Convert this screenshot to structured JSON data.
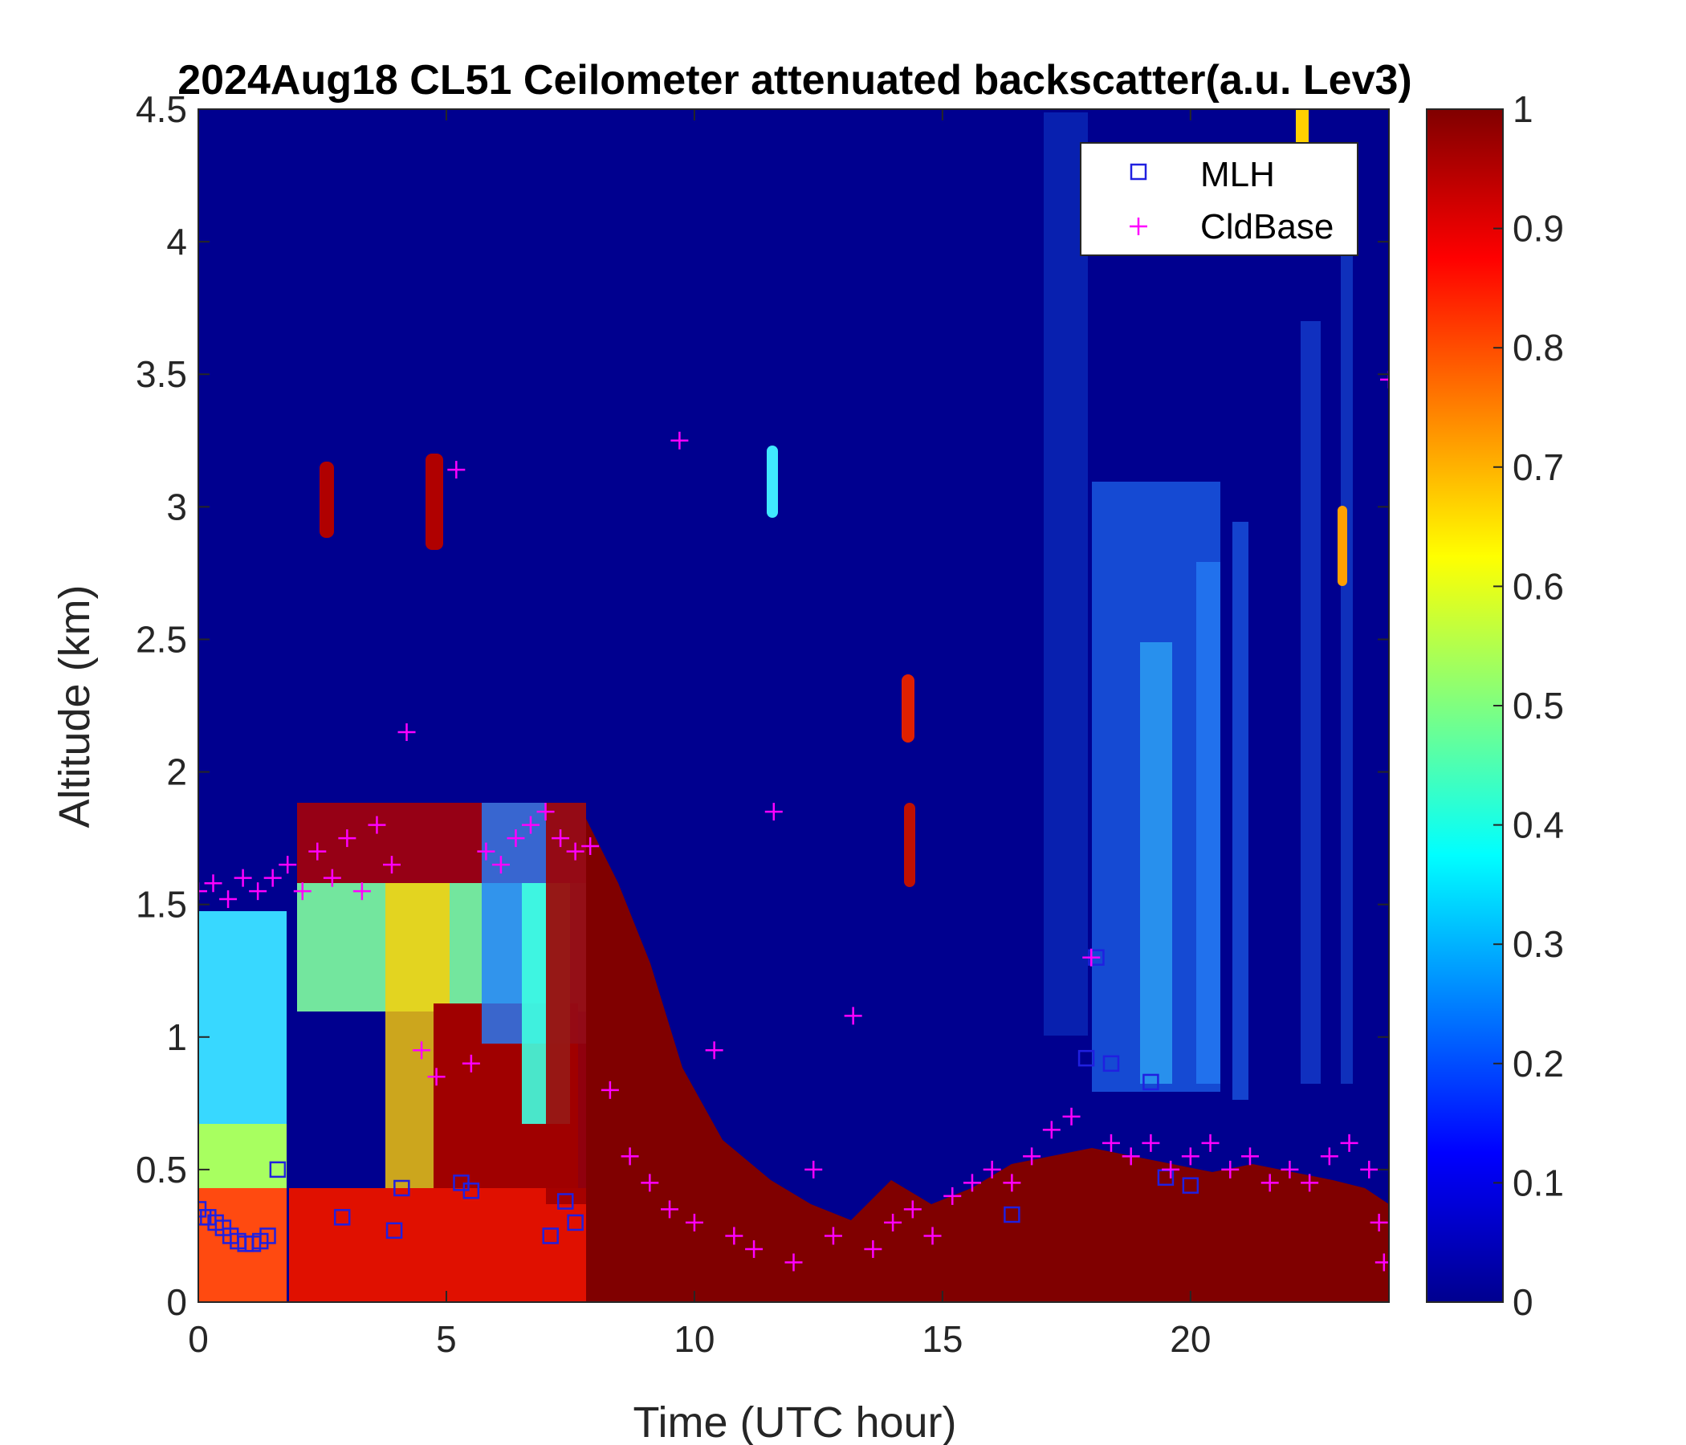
{
  "chart_data": {
    "type": "heatmap",
    "title": "2024Aug18 CL51 Ceilometer attenuated backscatter(a.u. Lev3)",
    "xlabel": "Time (UTC hour)",
    "ylabel": "Altitude (km)",
    "xlim": [
      0,
      24
    ],
    "ylim": [
      0,
      4.5
    ],
    "x_ticks": [
      "0",
      "5",
      "10",
      "15",
      "20"
    ],
    "y_ticks": [
      "0",
      "0.5",
      "1",
      "1.5",
      "2",
      "2.5",
      "3",
      "3.5",
      "4",
      "4.5"
    ],
    "colorbar": {
      "label_ticks": [
        "0",
        "0.1",
        "0.2",
        "0.3",
        "0.4",
        "0.5",
        "0.6",
        "0.7",
        "0.8",
        "0.9",
        "1"
      ],
      "range": [
        0,
        1
      ],
      "colormap": "jet"
    },
    "legend": {
      "location": "top-right",
      "entries": [
        {
          "label": "MLH",
          "marker": "square",
          "color": "#2020e0"
        },
        {
          "label": "CldBase",
          "marker": "plus",
          "color": "#ff00ff"
        }
      ]
    },
    "series": [
      {
        "name": "MLH",
        "x": [
          0.0,
          0.1,
          0.2,
          0.35,
          0.5,
          0.65,
          0.8,
          0.95,
          1.1,
          1.25,
          1.4,
          1.6,
          2.9,
          3.95,
          4.1,
          5.3,
          5.5,
          7.1,
          7.4,
          7.6,
          16.4,
          17.9,
          18.1,
          18.4,
          19.2,
          19.5,
          20.0
        ],
        "y": [
          0.35,
          0.32,
          0.32,
          0.3,
          0.28,
          0.25,
          0.23,
          0.22,
          0.22,
          0.23,
          0.25,
          0.5,
          0.32,
          0.27,
          0.43,
          0.45,
          0.42,
          0.25,
          0.38,
          0.3,
          0.33,
          0.92,
          1.3,
          0.9,
          0.83,
          0.47,
          0.44
        ]
      },
      {
        "name": "CldBase",
        "x": [
          0.0,
          0.3,
          0.6,
          0.9,
          1.2,
          1.5,
          1.8,
          2.1,
          2.4,
          2.7,
          3.0,
          3.3,
          3.6,
          3.9,
          4.2,
          4.5,
          4.8,
          5.2,
          5.5,
          5.8,
          6.1,
          6.4,
          6.7,
          7.0,
          7.3,
          7.6,
          7.9,
          8.3,
          8.7,
          9.1,
          9.5,
          9.7,
          10.0,
          10.4,
          10.8,
          11.2,
          11.6,
          12.0,
          12.4,
          12.8,
          13.2,
          13.6,
          14.0,
          14.4,
          14.8,
          15.2,
          15.6,
          16.0,
          16.4,
          16.8,
          17.2,
          17.6,
          18.0,
          18.4,
          18.8,
          19.2,
          19.6,
          20.0,
          20.4,
          20.8,
          21.2,
          21.6,
          22.0,
          22.4,
          22.8,
          23.2,
          23.6,
          23.8,
          23.9,
          24.0
        ],
        "y": [
          1.55,
          1.58,
          1.52,
          1.6,
          1.55,
          1.6,
          1.65,
          1.55,
          1.7,
          1.6,
          1.75,
          1.55,
          1.8,
          1.65,
          2.15,
          0.95,
          0.85,
          3.14,
          0.9,
          1.7,
          1.65,
          1.75,
          1.8,
          1.85,
          1.75,
          1.7,
          1.72,
          0.8,
          0.55,
          0.45,
          0.35,
          3.25,
          0.3,
          0.95,
          0.25,
          0.2,
          1.85,
          0.15,
          0.5,
          0.25,
          1.08,
          0.2,
          0.3,
          0.35,
          0.25,
          0.4,
          0.45,
          0.5,
          0.45,
          0.55,
          0.65,
          0.7,
          1.3,
          0.6,
          0.55,
          0.6,
          0.5,
          0.55,
          0.6,
          0.5,
          0.55,
          0.45,
          0.5,
          0.45,
          0.55,
          0.6,
          0.5,
          0.3,
          0.15,
          3.48
        ]
      }
    ]
  }
}
